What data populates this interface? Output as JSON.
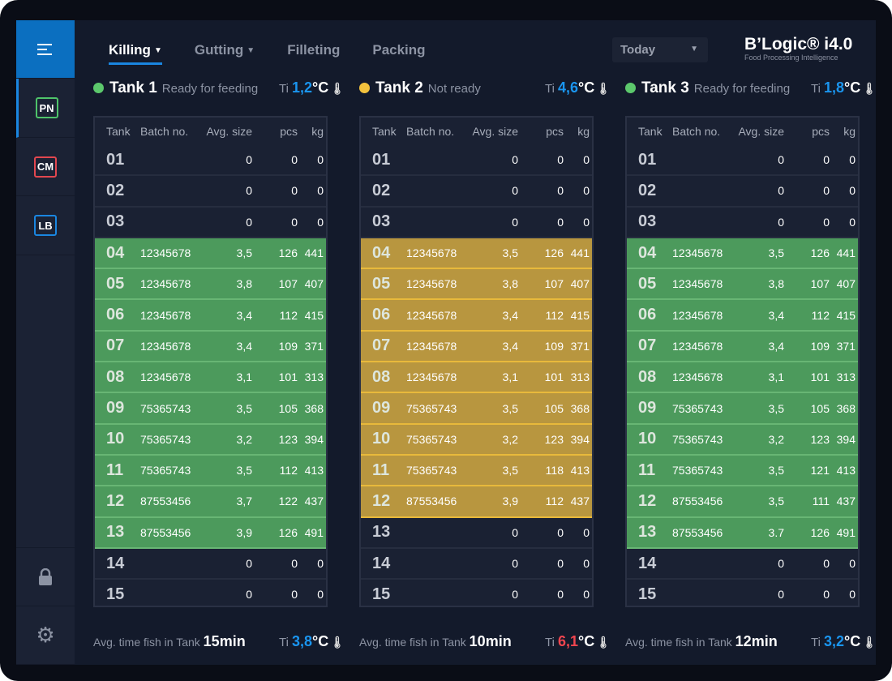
{
  "nav": {
    "tabs": [
      {
        "label": "Killing",
        "caret": true
      },
      {
        "label": "Gutting",
        "caret": true
      },
      {
        "label": "Filleting"
      },
      {
        "label": "Packing"
      }
    ],
    "date_select": "Today"
  },
  "logo": {
    "title": "B’Logic® i4.0",
    "subtitle": "Food Processing Intelligence"
  },
  "sidebar": {
    "items": [
      {
        "label": "PN",
        "color": "#4fc46a"
      },
      {
        "label": "CM",
        "color": "#e2474f"
      },
      {
        "label": "LB",
        "color": "#1a86e0"
      }
    ]
  },
  "columns": [
    "Tank",
    "Batch no.",
    "Avg. size",
    "pcs",
    "kg"
  ],
  "tanks": [
    {
      "name": "Tank 1",
      "status": "Ready for feeding",
      "status_color": "#5cc86c",
      "ti_label": "Ti",
      "temp": "1,2",
      "temp_color": "#1a95ef",
      "unit": "°C",
      "fill": "g",
      "rows": [
        [
          "01",
          "",
          "0",
          "0",
          "0"
        ],
        [
          "02",
          "",
          "0",
          "0",
          "0"
        ],
        [
          "03",
          "",
          "0",
          "0",
          "0"
        ],
        [
          "04",
          "12345678",
          "3,5",
          "126",
          "441"
        ],
        [
          "05",
          "12345678",
          "3,8",
          "107",
          "407"
        ],
        [
          "06",
          "12345678",
          "3,4",
          "112",
          "415"
        ],
        [
          "07",
          "12345678",
          "3,4",
          "109",
          "371"
        ],
        [
          "08",
          "12345678",
          "3,1",
          "101",
          "313"
        ],
        [
          "09",
          "75365743",
          "3,5",
          "105",
          "368"
        ],
        [
          "10",
          "75365743",
          "3,2",
          "123",
          "394"
        ],
        [
          "11",
          "75365743",
          "3,5",
          "112",
          "413"
        ],
        [
          "12",
          "87553456",
          "3,7",
          "122",
          "437"
        ],
        [
          "13",
          "87553456",
          "3,9",
          "126",
          "491"
        ],
        [
          "14",
          "",
          "0",
          "0",
          "0"
        ],
        [
          "15",
          "",
          "0",
          "0",
          "0"
        ]
      ],
      "filled": [
        3,
        12
      ],
      "avg_label": "Avg. time fish in Tank",
      "avg_time": "15min",
      "foot_temp": "3,8",
      "foot_temp_color": "#1a95ef"
    },
    {
      "name": "Tank 2",
      "status": "Not ready",
      "status_color": "#f3c23d",
      "ti_label": "Ti",
      "temp": "4,6",
      "temp_color": "#1a95ef",
      "unit": "°C",
      "fill": "y",
      "rows": [
        [
          "01",
          "",
          "0",
          "0",
          "0"
        ],
        [
          "02",
          "",
          "0",
          "0",
          "0"
        ],
        [
          "03",
          "",
          "0",
          "0",
          "0"
        ],
        [
          "04",
          "12345678",
          "3,5",
          "126",
          "441"
        ],
        [
          "05",
          "12345678",
          "3,8",
          "107",
          "407"
        ],
        [
          "06",
          "12345678",
          "3,4",
          "112",
          "415"
        ],
        [
          "07",
          "12345678",
          "3,4",
          "109",
          "371"
        ],
        [
          "08",
          "12345678",
          "3,1",
          "101",
          "313"
        ],
        [
          "09",
          "75365743",
          "3,5",
          "105",
          "368"
        ],
        [
          "10",
          "75365743",
          "3,2",
          "123",
          "394"
        ],
        [
          "11",
          "75365743",
          "3,5",
          "118",
          "413"
        ],
        [
          "12",
          "87553456",
          "3,9",
          "112",
          "437"
        ],
        [
          "13",
          "",
          "0",
          "0",
          "0"
        ],
        [
          "14",
          "",
          "0",
          "0",
          "0"
        ],
        [
          "15",
          "",
          "0",
          "0",
          "0"
        ]
      ],
      "filled": [
        3,
        11
      ],
      "avg_label": "Avg. time fish in Tank",
      "avg_time": "10min",
      "foot_temp": "6,1",
      "foot_temp_color": "#f0454f"
    },
    {
      "name": "Tank 3",
      "status": "Ready for feeding",
      "status_color": "#5cc86c",
      "ti_label": "Ti",
      "temp": "1,8",
      "temp_color": "#1a95ef",
      "unit": "°C",
      "fill": "g",
      "rows": [
        [
          "01",
          "",
          "0",
          "0",
          "0"
        ],
        [
          "02",
          "",
          "0",
          "0",
          "0"
        ],
        [
          "03",
          "",
          "0",
          "0",
          "0"
        ],
        [
          "04",
          "12345678",
          "3,5",
          "126",
          "441"
        ],
        [
          "05",
          "12345678",
          "3,8",
          "107",
          "407"
        ],
        [
          "06",
          "12345678",
          "3,4",
          "112",
          "415"
        ],
        [
          "07",
          "12345678",
          "3,4",
          "109",
          "371"
        ],
        [
          "08",
          "12345678",
          "3,1",
          "101",
          "313"
        ],
        [
          "09",
          "75365743",
          "3,5",
          "105",
          "368"
        ],
        [
          "10",
          "75365743",
          "3,2",
          "123",
          "394"
        ],
        [
          "11",
          "75365743",
          "3,5",
          "121",
          "413"
        ],
        [
          "12",
          "87553456",
          "3,5",
          "111",
          "437"
        ],
        [
          "13",
          "87553456",
          "3.7",
          "126",
          "491"
        ],
        [
          "14",
          "",
          "0",
          "0",
          "0"
        ],
        [
          "15",
          "",
          "0",
          "0",
          "0"
        ]
      ],
      "filled": [
        3,
        12
      ],
      "avg_label": "Avg. time fish in Tank",
      "avg_time": "12min",
      "foot_temp": "3,2",
      "foot_temp_color": "#1a95ef"
    }
  ]
}
